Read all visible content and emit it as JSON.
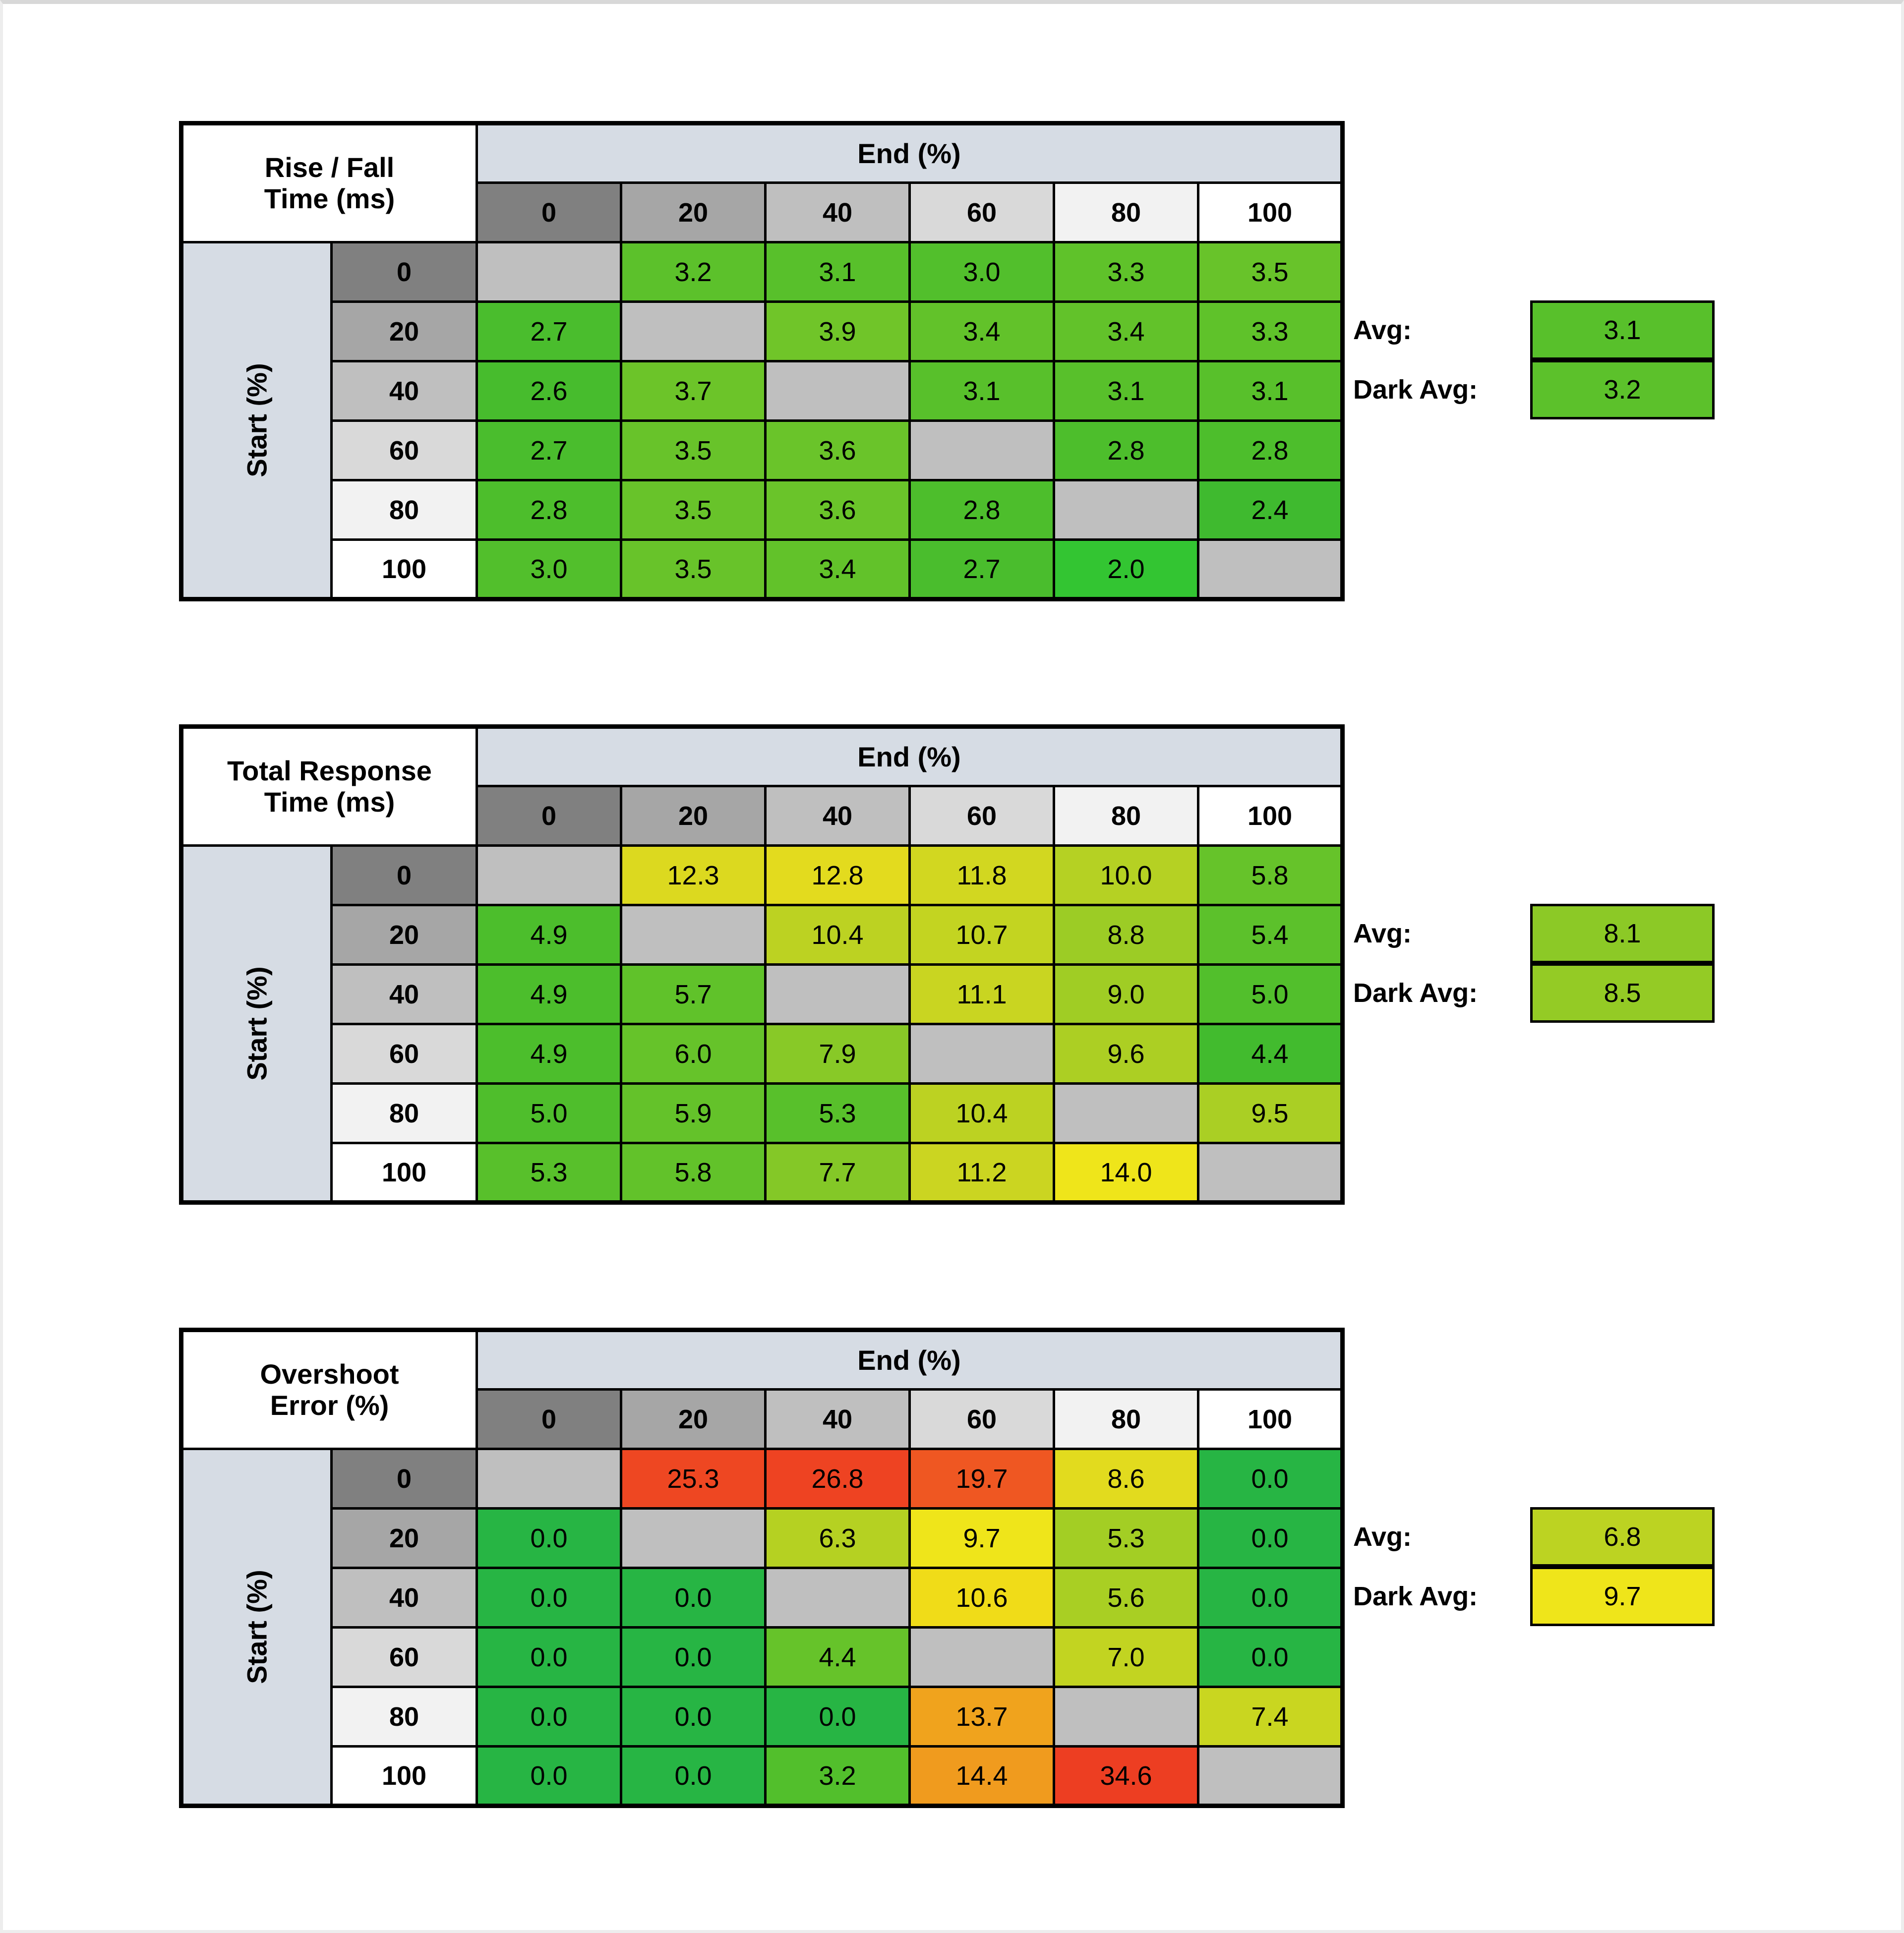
{
  "window": {
    "background": "#ffffff"
  },
  "palette": {
    "header_blue": "#D6DCE4",
    "diagonal_gray": "#BFBFBF",
    "table_border": "#000000",
    "header_grays": [
      "#808080",
      "#A6A6A6",
      "#BFBFBF",
      "#D9D9D9",
      "#F2F2F2",
      "#FFFFFF"
    ]
  },
  "chart_data": [
    {
      "type": "heatmap",
      "title": "Rise / Fall Time (ms)",
      "title_line1": "Rise / Fall",
      "title_line2": "Time (ms)",
      "x_axis_label": "End (%)",
      "y_axis_label": "Start (%)",
      "x_ticks": [
        "0",
        "20",
        "40",
        "60",
        "80",
        "100"
      ],
      "y_ticks": [
        "0",
        "20",
        "40",
        "60",
        "80",
        "100"
      ],
      "values": [
        [
          null,
          3.2,
          3.1,
          3.0,
          3.3,
          3.5
        ],
        [
          2.7,
          null,
          3.9,
          3.4,
          3.4,
          3.3
        ],
        [
          2.6,
          3.7,
          null,
          3.1,
          3.1,
          3.1
        ],
        [
          2.7,
          3.5,
          3.6,
          null,
          2.8,
          2.8
        ],
        [
          2.8,
          3.5,
          3.6,
          2.8,
          null,
          2.4
        ],
        [
          3.0,
          3.5,
          3.4,
          2.7,
          2.0,
          null
        ]
      ],
      "cell_colors": [
        [
          null,
          "#5CC12B",
          "#58C02B",
          "#52BF2C",
          "#5FC22A",
          "#68C32A"
        ],
        [
          "#4ABD2D",
          null,
          "#70C529",
          "#62C22A",
          "#62C22A",
          "#5FC22A"
        ],
        [
          "#47BC2D",
          "#6CC429",
          null,
          "#58C02B",
          "#58C02B",
          "#58C02B"
        ],
        [
          "#4ABD2D",
          "#68C32A",
          "#6AC42A",
          null,
          "#4DBE2C",
          "#4DBE2C"
        ],
        [
          "#4DBE2C",
          "#68C32A",
          "#6AC42A",
          "#4DBE2C",
          null,
          "#3FBA2F"
        ],
        [
          "#52BF2C",
          "#68C32A",
          "#62C22A",
          "#4ABD2D",
          "#33C532",
          null
        ]
      ],
      "avg_label": "Avg:",
      "avg_value": 3.1,
      "avg_color": "#58C02B",
      "dark_avg_label": "Dark Avg:",
      "dark_avg_value": 3.2,
      "dark_avg_color": "#5CC12B"
    },
    {
      "type": "heatmap",
      "title": "Total Response Time (ms)",
      "title_line1": "Total Response",
      "title_line2": "Time (ms)",
      "x_axis_label": "End (%)",
      "y_axis_label": "Start (%)",
      "x_ticks": [
        "0",
        "20",
        "40",
        "60",
        "80",
        "100"
      ],
      "y_ticks": [
        "0",
        "20",
        "40",
        "60",
        "80",
        "100"
      ],
      "values": [
        [
          null,
          12.3,
          12.8,
          11.8,
          10.0,
          5.8
        ],
        [
          4.9,
          null,
          10.4,
          10.7,
          8.8,
          5.4
        ],
        [
          4.9,
          5.7,
          null,
          11.1,
          9.0,
          5.0
        ],
        [
          4.9,
          6.0,
          7.9,
          null,
          9.6,
          4.4
        ],
        [
          5.0,
          5.9,
          5.3,
          10.4,
          null,
          9.5
        ],
        [
          5.3,
          5.8,
          7.7,
          11.2,
          14.0,
          null
        ]
      ],
      "cell_colors": [
        [
          null,
          "#DCD91F",
          "#E3DB1E",
          "#D2D720",
          "#B5D123",
          "#66C32A"
        ],
        [
          "#4CBE2C",
          null,
          "#BCD222",
          "#C3D421",
          "#9CCC25",
          "#5CC12B"
        ],
        [
          "#4CBE2C",
          "#60C22A",
          null,
          "#C9D521",
          "#A0CD24",
          "#52BF2C"
        ],
        [
          "#4CBE2C",
          "#66C32A",
          "#88C927",
          null,
          "#ACCF23",
          "#42BB2E"
        ],
        [
          "#4FBE2C",
          "#64C22A",
          "#58C02B",
          "#BCD222",
          null,
          "#AACF24"
        ],
        [
          "#58C02B",
          "#62C22A",
          "#84C827",
          "#CBD521",
          "#EFE51A",
          null
        ]
      ],
      "avg_label": "Avg:",
      "avg_value": 8.1,
      "avg_color": "#8CC926",
      "dark_avg_label": "Dark Avg:",
      "dark_avg_value": 8.5,
      "dark_avg_color": "#94CB25"
    },
    {
      "type": "heatmap",
      "title": "Overshoot Error (%)",
      "title_line1": "Overshoot",
      "title_line2": "Error (%)",
      "x_axis_label": "End (%)",
      "y_axis_label": "Start (%)",
      "x_ticks": [
        "0",
        "20",
        "40",
        "60",
        "80",
        "100"
      ],
      "y_ticks": [
        "0",
        "20",
        "40",
        "60",
        "80",
        "100"
      ],
      "values": [
        [
          null,
          25.3,
          26.8,
          19.7,
          8.6,
          0.0
        ],
        [
          0.0,
          null,
          6.3,
          9.7,
          5.3,
          0.0
        ],
        [
          0.0,
          0.0,
          null,
          10.6,
          5.6,
          0.0
        ],
        [
          0.0,
          0.0,
          4.4,
          null,
          7.0,
          0.0
        ],
        [
          0.0,
          0.0,
          0.0,
          13.7,
          null,
          7.4
        ],
        [
          0.0,
          0.0,
          3.2,
          14.4,
          34.6,
          null
        ]
      ],
      "cell_colors": [
        [
          null,
          "#EE4722",
          "#EE4322",
          "#EF5722",
          "#E2DB1E",
          "#27B544"
        ],
        [
          "#27B544",
          null,
          "#B5D122",
          "#EFE51A",
          "#A3CE24",
          "#27B544"
        ],
        [
          "#27B544",
          "#27B544",
          null,
          "#F0DC18",
          "#A9CF23",
          "#27B544"
        ],
        [
          "#27B544",
          "#27B544",
          "#66C32A",
          null,
          "#C2D421",
          "#27B544"
        ],
        [
          "#27B544",
          "#27B544",
          "#27B544",
          "#F0A31D",
          null,
          "#C9D620"
        ],
        [
          "#27B544",
          "#27B544",
          "#52BF2C",
          "#F09B1E",
          "#ED3E22",
          null
        ]
      ],
      "avg_label": "Avg:",
      "avg_value": 6.8,
      "avg_color": "#BCD322",
      "dark_avg_label": "Dark Avg:",
      "dark_avg_value": 9.7,
      "dark_avg_color": "#EFE51A"
    }
  ]
}
